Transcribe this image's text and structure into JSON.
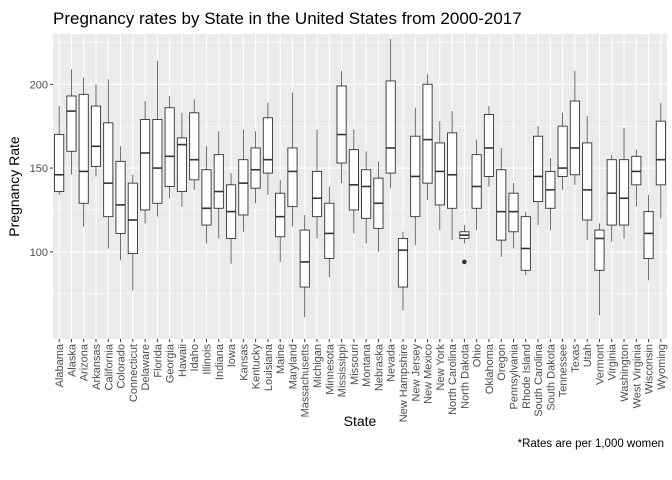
{
  "chart_data": {
    "type": "boxplot",
    "title": "Pregnancy rates by State in the United States from 2000-2017",
    "xlabel": "State",
    "ylabel": "Pregnancy Rate",
    "caption": "*Rates are per 1,000 women",
    "ylim": [
      48,
      230
    ],
    "yticks": [
      100,
      150,
      200
    ],
    "grid": true,
    "colors": {
      "panel": "#ebebeb",
      "grid_major": "#ffffff",
      "box_fill": "#ffffff",
      "box_line": "#333333"
    },
    "categories": [
      "Alabama",
      "Alaska",
      "Arizona",
      "Arkansas",
      "California",
      "Colorado",
      "Connecticut",
      "Delaware",
      "Florida",
      "Georgia",
      "Hawaii",
      "Idaho",
      "Illinois",
      "Indiana",
      "Iowa",
      "Kansas",
      "Kentucky",
      "Louisiana",
      "Maine",
      "Maryland",
      "Massachusetts",
      "Michigan",
      "Minnesota",
      "Mississippi",
      "Missouri",
      "Montana",
      "Nebraska",
      "Nevada",
      "New Hampshire",
      "New Jersey",
      "New Mexico",
      "New York",
      "North Carolina",
      "North Dakota",
      "Ohio",
      "Oklahoma",
      "Oregon",
      "Pennsylvania",
      "Rhode Island",
      "South Carolina",
      "South Dakota",
      "Tennessee",
      "Texas",
      "Utah",
      "Vermont",
      "Virginia",
      "Washington",
      "West Virginia",
      "Wisconsin",
      "Wyoming"
    ],
    "boxes": [
      {
        "min": 134,
        "q1": 136,
        "median": 146,
        "q3": 170,
        "max": 187
      },
      {
        "min": 146,
        "q1": 160,
        "median": 184,
        "q3": 193,
        "max": 209
      },
      {
        "min": 115,
        "q1": 129,
        "median": 148,
        "q3": 194,
        "max": 204
      },
      {
        "min": 145,
        "q1": 151,
        "median": 163,
        "q3": 187,
        "max": 200
      },
      {
        "min": 102,
        "q1": 121,
        "median": 141,
        "q3": 177,
        "max": 203
      },
      {
        "min": 95,
        "q1": 111,
        "median": 128,
        "q3": 154,
        "max": 163
      },
      {
        "min": 77,
        "q1": 99,
        "median": 119,
        "q3": 141,
        "max": 146
      },
      {
        "min": 117,
        "q1": 125,
        "median": 159,
        "q3": 179,
        "max": 190
      },
      {
        "min": 121,
        "q1": 129,
        "median": 150,
        "q3": 179,
        "max": 214
      },
      {
        "min": 132,
        "q1": 139,
        "median": 157,
        "q3": 186,
        "max": 193
      },
      {
        "min": 127,
        "q1": 136,
        "median": 164,
        "q3": 168,
        "max": 183
      },
      {
        "min": 137,
        "q1": 143,
        "median": 155,
        "q3": 183,
        "max": 191
      },
      {
        "min": 105,
        "q1": 116,
        "median": 126,
        "q3": 149,
        "max": 163
      },
      {
        "min": 108,
        "q1": 126,
        "median": 136,
        "q3": 158,
        "max": 172
      },
      {
        "min": 93,
        "q1": 108,
        "median": 124,
        "q3": 140,
        "max": 147
      },
      {
        "min": 112,
        "q1": 122,
        "median": 141,
        "q3": 155,
        "max": 173
      },
      {
        "min": 129,
        "q1": 138,
        "median": 149,
        "q3": 162,
        "max": 172
      },
      {
        "min": 134,
        "q1": 147,
        "median": 155,
        "q3": 180,
        "max": 189
      },
      {
        "min": 94,
        "q1": 109,
        "median": 121,
        "q3": 135,
        "max": 143
      },
      {
        "min": 115,
        "q1": 127,
        "median": 148,
        "q3": 162,
        "max": 195
      },
      {
        "min": 61,
        "q1": 79,
        "median": 94,
        "q3": 113,
        "max": 122
      },
      {
        "min": 108,
        "q1": 121,
        "median": 132,
        "q3": 148,
        "max": 173
      },
      {
        "min": 85,
        "q1": 96,
        "median": 111,
        "q3": 129,
        "max": 139
      },
      {
        "min": 141,
        "q1": 153,
        "median": 170,
        "q3": 199,
        "max": 208
      },
      {
        "min": 111,
        "q1": 125,
        "median": 140,
        "q3": 161,
        "max": 173
      },
      {
        "min": 105,
        "q1": 120,
        "median": 139,
        "q3": 149,
        "max": 160
      },
      {
        "min": 100,
        "q1": 114,
        "median": 129,
        "q3": 144,
        "max": 154
      },
      {
        "min": 138,
        "q1": 147,
        "median": 162,
        "q3": 202,
        "max": 227
      },
      {
        "min": 65,
        "q1": 79,
        "median": 101,
        "q3": 108,
        "max": 112
      },
      {
        "min": 104,
        "q1": 121,
        "median": 145,
        "q3": 169,
        "max": 186
      },
      {
        "min": 131,
        "q1": 141,
        "median": 167,
        "q3": 200,
        "max": 206
      },
      {
        "min": 113,
        "q1": 128,
        "median": 148,
        "q3": 165,
        "max": 178
      },
      {
        "min": 107,
        "q1": 126,
        "median": 146,
        "q3": 171,
        "max": 184
      },
      {
        "min": 105,
        "q1": 108,
        "median": 110,
        "q3": 112,
        "max": 116
      },
      {
        "min": 113,
        "q1": 126,
        "median": 139,
        "q3": 158,
        "max": 167
      },
      {
        "min": 139,
        "q1": 145,
        "median": 162,
        "q3": 182,
        "max": 187
      },
      {
        "min": 97,
        "q1": 107,
        "median": 124,
        "q3": 149,
        "max": 162
      },
      {
        "min": 102,
        "q1": 112,
        "median": 124,
        "q3": 135,
        "max": 141
      },
      {
        "min": 86,
        "q1": 89,
        "median": 102,
        "q3": 121,
        "max": 124
      },
      {
        "min": 116,
        "q1": 130,
        "median": 145,
        "q3": 169,
        "max": 175
      },
      {
        "min": 113,
        "q1": 126,
        "median": 137,
        "q3": 148,
        "max": 156
      },
      {
        "min": 137,
        "q1": 145,
        "median": 150,
        "q3": 175,
        "max": 183
      },
      {
        "min": 140,
        "q1": 146,
        "median": 162,
        "q3": 190,
        "max": 208
      },
      {
        "min": 107,
        "q1": 119,
        "median": 137,
        "q3": 165,
        "max": 181
      },
      {
        "min": 62,
        "q1": 89,
        "median": 108,
        "q3": 113,
        "max": 117
      },
      {
        "min": 106,
        "q1": 116,
        "median": 135,
        "q3": 155,
        "max": 158
      },
      {
        "min": 108,
        "q1": 116,
        "median": 132,
        "q3": 155,
        "max": 174
      },
      {
        "min": 127,
        "q1": 140,
        "median": 148,
        "q3": 157,
        "max": 161
      },
      {
        "min": 83,
        "q1": 96,
        "median": 111,
        "q3": 124,
        "max": 134
      },
      {
        "min": 120,
        "q1": 140,
        "median": 155,
        "q3": 178,
        "max": 189
      }
    ],
    "outliers": [
      {
        "category": "North Dakota",
        "value": 94
      }
    ]
  }
}
